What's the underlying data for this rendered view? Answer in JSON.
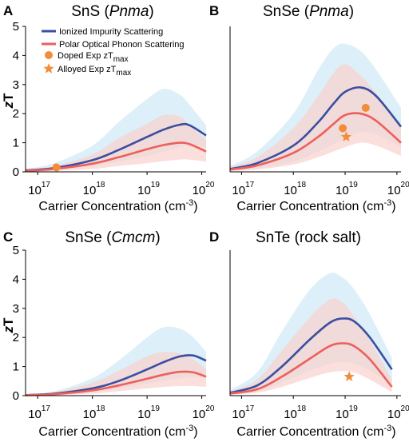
{
  "colors": {
    "ionized": "#3b4ea0",
    "ionized_band": "#d2e9f5",
    "polar": "#ee5f5b",
    "polar_band": "#f8d1cd",
    "exp_marker": "#f28c3a",
    "axis": "#000000"
  },
  "legend": {
    "ionized": "Ionized Impurity Scattering",
    "polar": "Polar Optical Phonon Scattering",
    "doped": "Doped Exp zT",
    "doped_sub": "max",
    "alloyed": "Alloyed Exp zT",
    "alloyed_sub": "max"
  },
  "chart_data": [
    {
      "panel": "A",
      "type": "line",
      "title": "SnS (Pnma)",
      "title_main": "SnS (",
      "title_italic": "Pnma",
      "title_end": ")",
      "xscale": "log",
      "xlim": [
        6e+16,
        1.2e+20
      ],
      "ylim": [
        0,
        5
      ],
      "ylabel": "zT",
      "xlabel": "Carrier Concentration (cm",
      "xlabel_sup": "-3",
      "xlabel_end": ")",
      "yticks": [
        0,
        1,
        2,
        3,
        4,
        5
      ],
      "xticks": [
        {
          "base": "10",
          "exp": "17"
        },
        {
          "base": "10",
          "exp": "18"
        },
        {
          "base": "10",
          "exp": "19"
        },
        {
          "base": "10",
          "exp": "20"
        }
      ],
      "series": [
        {
          "name": "Ionized Impurity Scattering",
          "x": [
            6e+16,
            2e+17,
            1e+18,
            3e+18,
            1e+19,
            2e+19,
            4e+19,
            6e+19,
            1.2e+20
          ],
          "y": [
            0.05,
            0.13,
            0.4,
            0.75,
            1.2,
            1.45,
            1.62,
            1.6,
            1.25
          ],
          "band_upper": [
            0.1,
            0.3,
            0.9,
            1.7,
            2.5,
            2.85,
            2.65,
            2.3,
            1.6
          ],
          "band_lower": [
            0.02,
            0.06,
            0.2,
            0.35,
            0.55,
            0.7,
            0.85,
            0.95,
            0.85
          ]
        },
        {
          "name": "Polar Optical Phonon Scattering",
          "x": [
            6e+16,
            2e+17,
            1e+18,
            3e+18,
            1e+19,
            2e+19,
            4e+19,
            6e+19,
            1.2e+20
          ],
          "y": [
            0.04,
            0.1,
            0.28,
            0.5,
            0.78,
            0.92,
            1.0,
            0.95,
            0.7
          ],
          "band_upper": [
            0.08,
            0.2,
            0.6,
            1.15,
            1.65,
            1.95,
            1.9,
            1.6,
            1.1
          ],
          "band_lower": [
            0.01,
            0.03,
            0.1,
            0.2,
            0.3,
            0.37,
            0.42,
            0.42,
            0.35
          ]
        }
      ],
      "points": [
        {
          "name": "Doped Exp zTmax",
          "marker": "circle",
          "x": 2.2e+17,
          "y": 0.15
        }
      ],
      "legend": true
    },
    {
      "panel": "B",
      "type": "line",
      "title": "SnSe (Pnma)",
      "title_main": "SnSe (",
      "title_italic": "Pnma",
      "title_end": ")",
      "xscale": "log",
      "xlim": [
        6e+16,
        1.2e+20
      ],
      "ylim": [
        0,
        5
      ],
      "ylabel": "",
      "xlabel": "Carrier Concentration (cm",
      "xlabel_sup": "-3",
      "xlabel_end": ")",
      "yticks": [],
      "xticks": [
        {
          "base": "10",
          "exp": "17"
        },
        {
          "base": "10",
          "exp": "18"
        },
        {
          "base": "10",
          "exp": "19"
        },
        {
          "base": "10",
          "exp": "20"
        }
      ],
      "series": [
        {
          "name": "Ionized Impurity Scattering",
          "x": [
            6e+16,
            2e+17,
            1e+18,
            3e+18,
            6e+18,
            1e+19,
            2e+19,
            4e+19,
            1.2e+20
          ],
          "y": [
            0.1,
            0.3,
            0.9,
            1.7,
            2.35,
            2.75,
            2.9,
            2.6,
            1.55
          ],
          "band_upper": [
            0.2,
            0.7,
            2.0,
            3.5,
            4.25,
            4.4,
            4.15,
            3.5,
            2.2
          ],
          "band_lower": [
            0.04,
            0.12,
            0.35,
            0.7,
            0.95,
            1.15,
            1.35,
            1.3,
            0.85
          ]
        },
        {
          "name": "Polar Optical Phonon Scattering",
          "x": [
            6e+16,
            2e+17,
            1e+18,
            3e+18,
            6e+18,
            1e+19,
            2e+19,
            4e+19,
            1.2e+20
          ],
          "y": [
            0.08,
            0.22,
            0.65,
            1.2,
            1.65,
            1.95,
            2.0,
            1.75,
            1.0
          ],
          "band_upper": [
            0.16,
            0.5,
            1.5,
            2.6,
            3.4,
            3.7,
            3.3,
            2.7,
            1.6
          ],
          "band_lower": [
            0.03,
            0.08,
            0.25,
            0.5,
            0.7,
            0.85,
            1.0,
            0.9,
            0.55
          ]
        }
      ],
      "points": [
        {
          "name": "Doped Exp zTmax",
          "marker": "circle",
          "x": 9e+18,
          "y": 1.5
        },
        {
          "name": "Doped Exp zTmax",
          "marker": "circle",
          "x": 2.5e+19,
          "y": 2.2
        },
        {
          "name": "Alloyed Exp zTmax",
          "marker": "star",
          "x": 1.05e+19,
          "y": 1.2
        }
      ],
      "legend": false
    },
    {
      "panel": "C",
      "type": "line",
      "title": "SnSe (Cmcm)",
      "title_main": "SnSe (",
      "title_italic": "Cmcm",
      "title_end": ")",
      "xscale": "log",
      "xlim": [
        6e+16,
        1.2e+20
      ],
      "ylim": [
        0,
        5
      ],
      "ylabel": "zT",
      "xlabel": "Carrier Concentration (cm",
      "xlabel_sup": "-3",
      "xlabel_end": ")",
      "yticks": [
        0,
        1,
        2,
        3,
        4,
        5
      ],
      "xticks": [
        {
          "base": "10",
          "exp": "17"
        },
        {
          "base": "10",
          "exp": "18"
        },
        {
          "base": "10",
          "exp": "19"
        },
        {
          "base": "10",
          "exp": "20"
        }
      ],
      "series": [
        {
          "name": "Ionized Impurity Scattering",
          "x": [
            6e+16,
            2e+17,
            1e+18,
            3e+18,
            1e+19,
            2e+19,
            4e+19,
            7e+19,
            1.2e+20
          ],
          "y": [
            0.02,
            0.07,
            0.25,
            0.5,
            0.9,
            1.15,
            1.35,
            1.38,
            1.2
          ],
          "band_upper": [
            0.05,
            0.15,
            0.6,
            1.2,
            2.0,
            2.35,
            2.3,
            2.0,
            1.5
          ],
          "band_lower": [
            0.01,
            0.03,
            0.12,
            0.25,
            0.42,
            0.52,
            0.6,
            0.65,
            0.6
          ]
        },
        {
          "name": "Polar Optical Phonon Scattering",
          "x": [
            6e+16,
            2e+17,
            1e+18,
            3e+18,
            1e+19,
            2e+19,
            4e+19,
            7e+19,
            1.2e+20
          ],
          "y": [
            0.02,
            0.05,
            0.18,
            0.35,
            0.58,
            0.72,
            0.82,
            0.8,
            0.65
          ],
          "band_upper": [
            0.04,
            0.12,
            0.45,
            0.85,
            1.35,
            1.5,
            1.45,
            1.25,
            0.9
          ],
          "band_lower": [
            0.01,
            0.02,
            0.07,
            0.15,
            0.25,
            0.3,
            0.33,
            0.33,
            0.3
          ]
        }
      ],
      "points": [],
      "legend": false
    },
    {
      "panel": "D",
      "type": "line",
      "title": "SnTe (rock salt)",
      "title_main": "SnTe (rock salt)",
      "title_italic": "",
      "title_end": "",
      "xscale": "log",
      "xlim": [
        6e+16,
        1.2e+20
      ],
      "ylim": [
        0,
        5
      ],
      "ylabel": "",
      "xlabel": "Carrier Concentration (cm",
      "xlabel_sup": "-3",
      "xlabel_end": ")",
      "yticks": [],
      "xticks": [
        {
          "base": "10",
          "exp": "17"
        },
        {
          "base": "10",
          "exp": "18"
        },
        {
          "base": "10",
          "exp": "19"
        },
        {
          "base": "10",
          "exp": "20"
        }
      ],
      "series": [
        {
          "name": "Ionized Impurity Scattering",
          "x": [
            6e+16,
            2e+17,
            6e+17,
            2e+18,
            5e+18,
            9e+18,
            1.5e+19,
            3e+19,
            8e+19
          ],
          "y": [
            0.1,
            0.35,
            1.0,
            1.9,
            2.5,
            2.65,
            2.55,
            2.0,
            0.9
          ],
          "band_upper": [
            0.2,
            0.8,
            2.2,
            3.6,
            4.2,
            4.05,
            3.65,
            2.8,
            1.3
          ],
          "band_lower": [
            0.04,
            0.15,
            0.45,
            0.85,
            1.1,
            1.15,
            1.1,
            0.85,
            0.4
          ]
        },
        {
          "name": "Polar Optical Phonon Scattering",
          "x": [
            6e+16,
            2e+17,
            6e+17,
            2e+18,
            5e+18,
            9e+18,
            1.5e+19,
            3e+19,
            8e+19
          ],
          "y": [
            0.07,
            0.22,
            0.65,
            1.25,
            1.7,
            1.8,
            1.7,
            1.25,
            0.3
          ],
          "band_upper": [
            0.14,
            0.55,
            1.55,
            2.65,
            3.3,
            3.2,
            2.7,
            1.9,
            0.55
          ],
          "band_lower": [
            0.03,
            0.1,
            0.3,
            0.6,
            0.8,
            0.85,
            0.8,
            0.55,
            0.12
          ]
        }
      ],
      "points": [
        {
          "name": "Alloyed Exp zTmax",
          "marker": "star",
          "x": 1.2e+19,
          "y": 0.65
        }
      ],
      "legend": false
    }
  ]
}
